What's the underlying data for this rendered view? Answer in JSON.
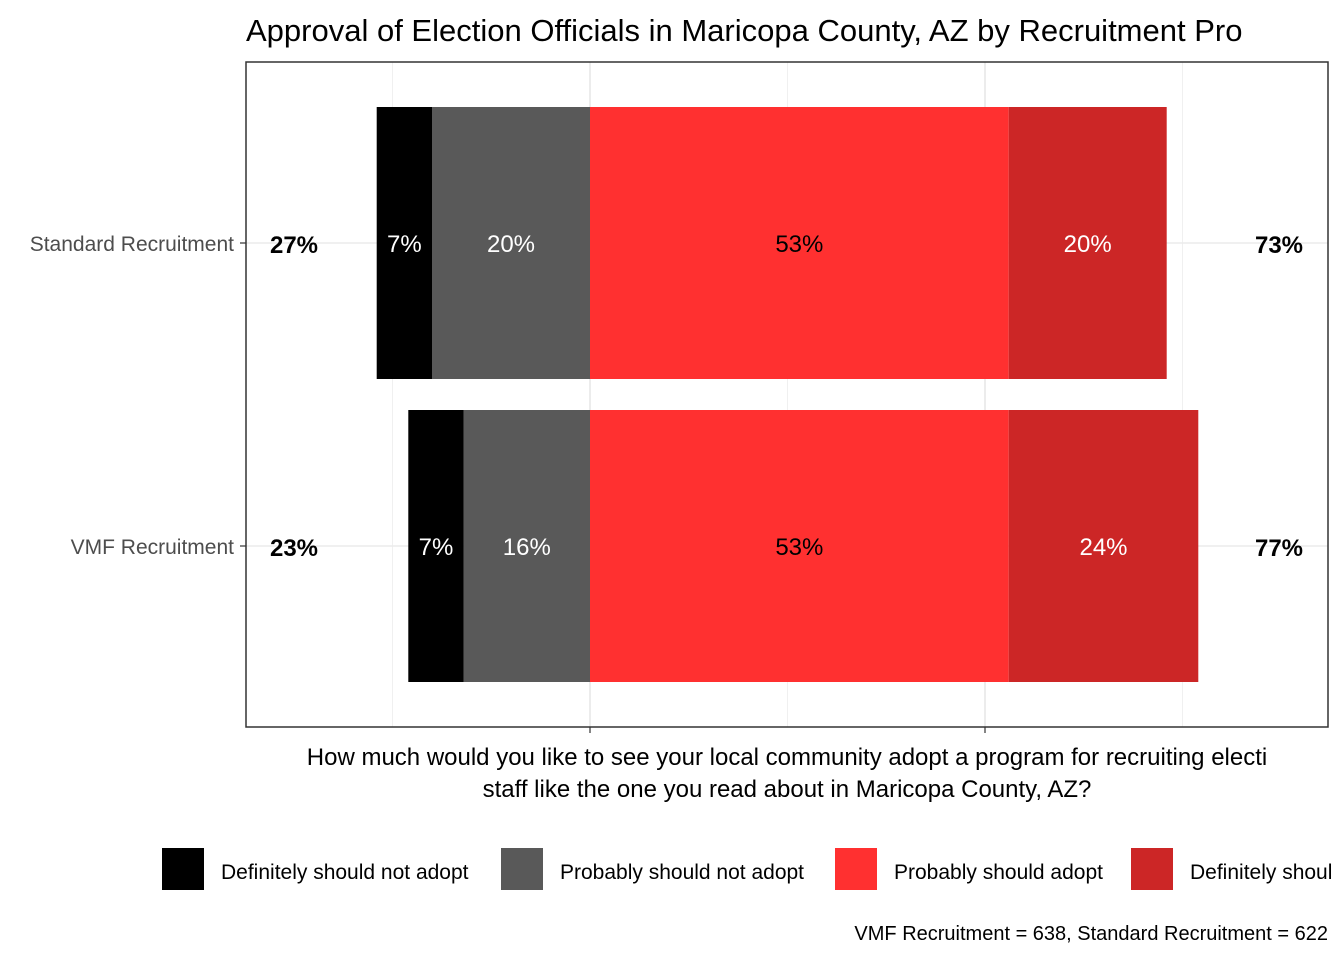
{
  "chart_data": {
    "type": "bar",
    "orientation": "horizontal",
    "stacked": "diverging",
    "title": "Approval of Election Officials in Maricopa County, AZ by Recruitment Pro",
    "xlabel_lines": [
      "How much would you like to see your local community adopt a program for recruiting electi",
      "staff like the one you read about in Maricopa County, AZ?"
    ],
    "ylabel": "",
    "categories": [
      "Standard Recruitment",
      "VMF Recruitment"
    ],
    "series": [
      {
        "name": "Definitely should not adopt",
        "color": "#000000",
        "label_color": "#ffffff",
        "side": "negative",
        "values": [
          7,
          7
        ],
        "labels": [
          "7%",
          "7%"
        ]
      },
      {
        "name": "Probably should not adopt",
        "color": "#595959",
        "label_color": "#ffffff",
        "side": "negative",
        "values": [
          20,
          16
        ],
        "labels": [
          "20%",
          "16%"
        ]
      },
      {
        "name": "Probably should adopt",
        "color": "#ff3030",
        "label_color": "#000000",
        "side": "positive",
        "values": [
          53,
          53
        ],
        "labels": [
          "53%",
          "53%"
        ]
      },
      {
        "name": "Definitely should adopt",
        "color": "#cc2626",
        "label_color": "#ffffff",
        "side": "positive",
        "values": [
          20,
          24
        ],
        "labels": [
          "20%",
          "24%"
        ]
      }
    ],
    "totals_negative": [
      "27%",
      "23%"
    ],
    "totals_positive": [
      "73%",
      "77%"
    ],
    "xlim": [
      -45,
      95
    ],
    "grid": true,
    "legend_position": "bottom",
    "legend_labels": [
      "Definitely should not adopt",
      "Probably should not adopt",
      "Probably should adopt",
      "Definitely shoul"
    ],
    "caption": "VMF Recruitment = 638, Standard Recruitment = 622"
  }
}
